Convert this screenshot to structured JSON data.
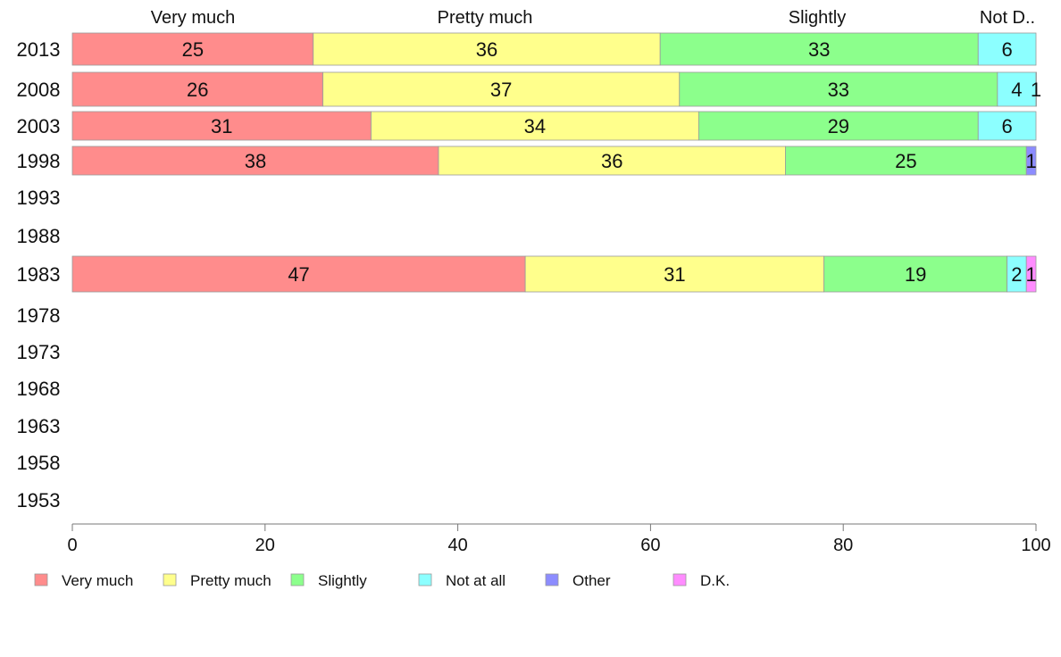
{
  "chart_data": {
    "type": "bar",
    "orientation": "horizontal",
    "stacked": true,
    "title": "",
    "xlabel": "",
    "ylabel": "",
    "xlim": [
      0,
      100
    ],
    "x_ticks": [
      0,
      20,
      40,
      60,
      80,
      100
    ],
    "grid": false,
    "legend_position": "bottom",
    "column_labels": [
      "Very much",
      "Pretty much",
      "Slightly",
      "Not D.."
    ],
    "categories": [
      "2013",
      "2008",
      "2003",
      "1998",
      "1993",
      "1988",
      "1983",
      "1978",
      "1973",
      "1968",
      "1963",
      "1958",
      "1953"
    ],
    "series": [
      {
        "name": "Very much",
        "color": "#ff8c8c",
        "values": [
          25,
          26,
          31,
          38,
          null,
          null,
          47,
          null,
          null,
          null,
          null,
          null,
          null
        ],
        "labels": [
          "25",
          "26",
          "31",
          "38",
          "",
          "",
          "47",
          "",
          "",
          "",
          "",
          "",
          ""
        ]
      },
      {
        "name": "Pretty much",
        "color": "#ffff8c",
        "values": [
          36,
          37,
          34,
          36,
          null,
          null,
          31,
          null,
          null,
          null,
          null,
          null,
          null
        ],
        "labels": [
          "36",
          "37",
          "34",
          "36",
          "",
          "",
          "31",
          "",
          "",
          "",
          "",
          "",
          ""
        ]
      },
      {
        "name": "Slightly",
        "color": "#8cff8c",
        "values": [
          33,
          33,
          29,
          25,
          null,
          null,
          19,
          null,
          null,
          null,
          null,
          null,
          null
        ],
        "labels": [
          "33",
          "33",
          "29",
          "25",
          "",
          "",
          "19",
          "",
          "",
          "",
          "",
          "",
          ""
        ]
      },
      {
        "name": "Not at all",
        "color": "#8cffff",
        "values": [
          6,
          4,
          6,
          0,
          null,
          null,
          2,
          null,
          null,
          null,
          null,
          null,
          null
        ],
        "labels": [
          "6",
          "4",
          "6",
          "",
          "",
          "",
          "2",
          "",
          "",
          "",
          "",
          "",
          ""
        ]
      },
      {
        "name": "Other",
        "color": "#8c8cff",
        "values": [
          0,
          0,
          0,
          1,
          null,
          null,
          0,
          null,
          null,
          null,
          null,
          null,
          null
        ],
        "labels": [
          "",
          "",
          "",
          "1",
          "",
          "",
          "",
          "",
          "",
          "",
          "",
          "",
          ""
        ]
      },
      {
        "name": "D.K.",
        "color": "#ff8cff",
        "values": [
          0,
          1,
          0,
          0,
          null,
          null,
          1,
          null,
          null,
          null,
          null,
          null,
          null
        ],
        "labels": [
          "",
          "1",
          "",
          "",
          "",
          "",
          "1",
          "",
          "",
          "",
          "",
          "",
          ""
        ]
      }
    ]
  }
}
